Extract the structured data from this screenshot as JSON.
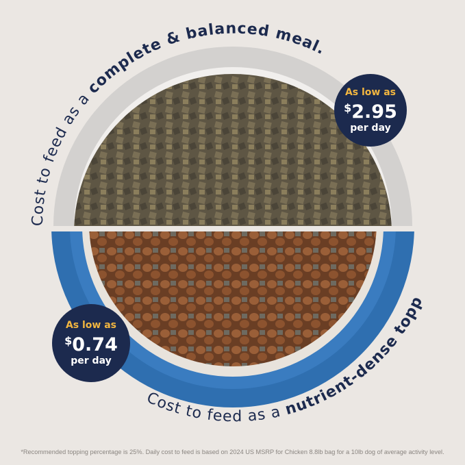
{
  "top_caption": {
    "prefix": "Cost to feed as a ",
    "emphasis": "complete & balanced meal."
  },
  "bottom_caption": {
    "prefix": "Cost to feed as a ",
    "emphasis": "nutrient-dense topper.",
    "mark": "*"
  },
  "badge_meal": {
    "label": "As low as",
    "currency": "$",
    "price": "2.95",
    "unit": "per day"
  },
  "badge_topper": {
    "label": "As low as",
    "currency": "$",
    "price": "0.74",
    "unit": "per day"
  },
  "footnote": "*Recommended topping percentage is 25%. Daily cost to feed is based on 2024 US MSRP for Chicken 8.8lb bag for a 10lb dog of average activity level.",
  "colors": {
    "background": "#ebe7e3",
    "navy": "#1c2a4e",
    "gold": "#f2b640",
    "bowl_blue": "#2f6fb0",
    "bowl_gray": "#c9c7c5"
  }
}
